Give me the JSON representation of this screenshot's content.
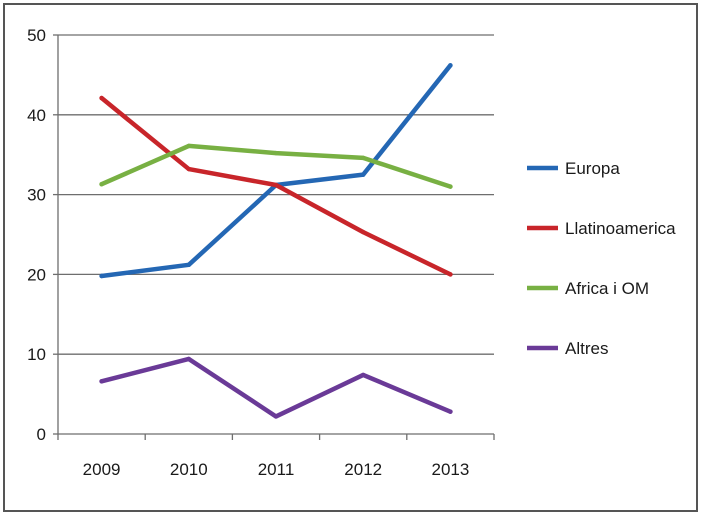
{
  "chart_data": {
    "type": "line",
    "title": "",
    "xlabel": "",
    "ylabel": "",
    "categories": [
      "2009",
      "2010",
      "2011",
      "2012",
      "2013"
    ],
    "ylim": [
      0,
      50
    ],
    "yticks": [
      0,
      10,
      20,
      30,
      40,
      50
    ],
    "grid": "horizontal",
    "legend_position": "right",
    "series": [
      {
        "name": "Europa",
        "color": "#2467b4",
        "values": [
          19.8,
          21.2,
          31.2,
          32.5,
          46.2
        ]
      },
      {
        "name": "Llatinoamerica",
        "color": "#c8252a",
        "values": [
          42.1,
          33.2,
          31.2,
          25.3,
          20.0
        ]
      },
      {
        "name": "Africa i OM",
        "color": "#78b043",
        "values": [
          31.3,
          36.1,
          35.2,
          34.6,
          31.0
        ]
      },
      {
        "name": "Altres",
        "color": "#6a3a97",
        "values": [
          6.6,
          9.4,
          2.2,
          7.4,
          2.8
        ]
      }
    ]
  }
}
